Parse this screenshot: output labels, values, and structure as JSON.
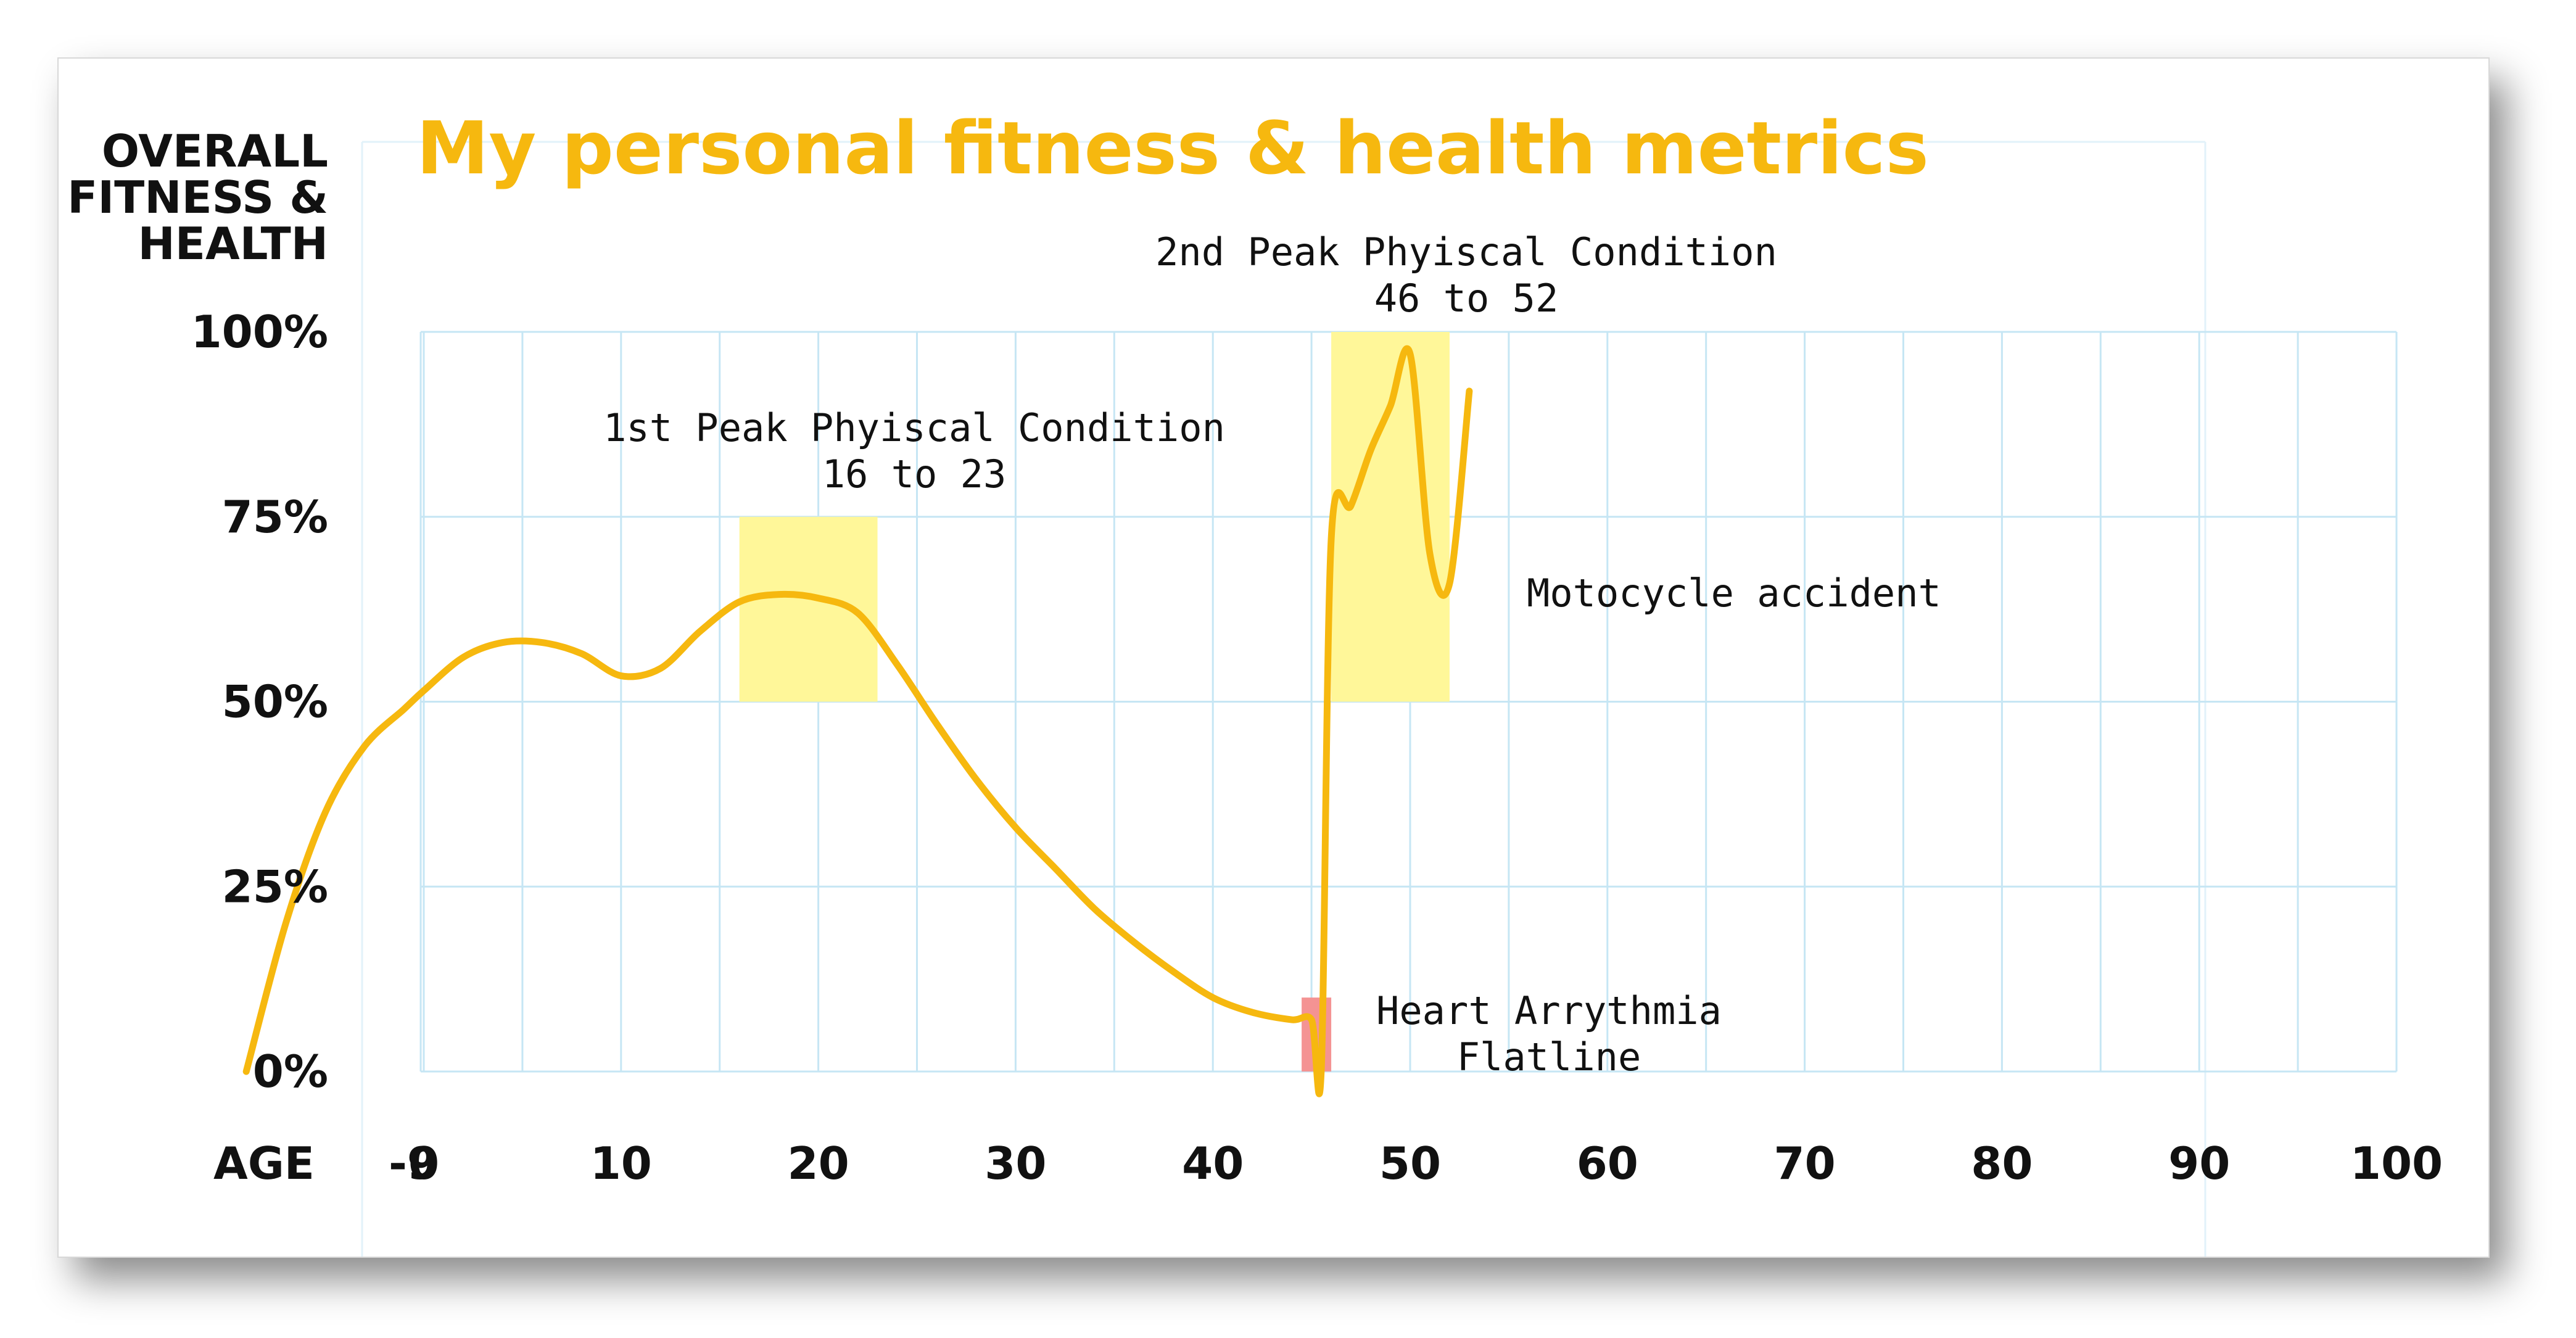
{
  "chart_data": {
    "type": "line",
    "title": "My personal fitness & health metrics",
    "ylabel": [
      "OVERALL",
      "FITNESS &",
      "HEALTH"
    ],
    "xlabel": "AGE",
    "x_ticks": [
      "-9",
      "0",
      "10",
      "20",
      "30",
      "40",
      "50",
      "60",
      "70",
      "80",
      "90",
      "100"
    ],
    "y_ticks": [
      "100%",
      "75%",
      "50%",
      "25%",
      "0%"
    ],
    "xlim": [
      -9,
      100
    ],
    "ylim": [
      0,
      100
    ],
    "grid": true,
    "colors": {
      "line": "#F6B80F",
      "title": "#F6B80F",
      "highlight": "#FFF799",
      "flatline": "#F49393",
      "grid": "#C6E6F4"
    },
    "series": [
      {
        "x": [
          -9,
          -7,
          -5,
          -3,
          -1,
          0,
          2,
          4,
          6,
          8,
          10,
          12,
          14,
          16,
          18,
          20,
          22,
          24,
          26,
          28,
          30,
          32,
          34,
          36,
          38,
          40,
          42,
          44,
          45,
          45.5,
          46,
          47,
          48,
          49,
          50,
          51,
          52,
          53
        ],
        "y": [
          0,
          20,
          35,
          44,
          49,
          51.5,
          56,
          58,
          58,
          56.5,
          53.5,
          54.5,
          59.5,
          63.5,
          64.5,
          64,
          62,
          55,
          47,
          39.5,
          33,
          27.5,
          22,
          17.5,
          13.5,
          10,
          8,
          7,
          7,
          0.5,
          72,
          76.5,
          84,
          90,
          97,
          70,
          66,
          92
        ]
      }
    ],
    "annotations": [
      {
        "lines": [
          "1st Peak Phyiscal Condition",
          "16 to 23"
        ],
        "x": [
          16,
          23
        ],
        "y": [
          50,
          75
        ]
      },
      {
        "lines": [
          "2nd Peak Phyiscal Condition",
          "46 to 52"
        ],
        "x": [
          46,
          52
        ],
        "y": [
          50,
          100
        ]
      },
      {
        "lines": [
          "Motocycle accident"
        ],
        "x": 52,
        "y": 66
      },
      {
        "lines": [
          "Heart Arrythmia",
          "Flatline"
        ],
        "x": [
          44.5,
          46
        ],
        "y": [
          0,
          10
        ]
      }
    ]
  }
}
